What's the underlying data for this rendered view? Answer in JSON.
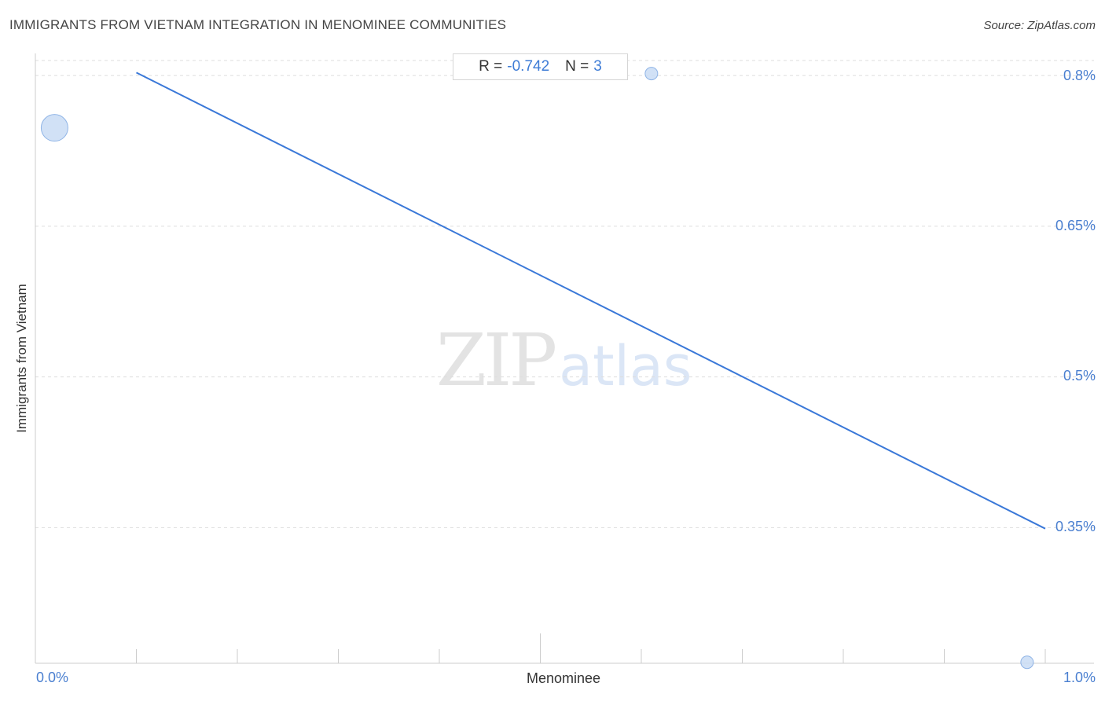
{
  "header": {
    "title": "IMMIGRANTS FROM VIETNAM INTEGRATION IN MENOMINEE COMMUNITIES",
    "source": "Source: ZipAtlas.com"
  },
  "watermark": {
    "zip": "ZIP",
    "atlas": "atlas"
  },
  "stats": {
    "r_label": "R =",
    "r_value": "-0.742",
    "n_label": "N =",
    "n_value": "3"
  },
  "chart_data": {
    "type": "scatter",
    "title": "IMMIGRANTS FROM VIETNAM INTEGRATION IN MENOMINEE COMMUNITIES",
    "xlabel": "Menominee",
    "ylabel": "Immigrants from Vietnam",
    "x_tick_labels": [
      "0.0%",
      "1.0%"
    ],
    "y_tick_labels": [
      "0.8%",
      "0.65%",
      "0.5%",
      "0.35%"
    ],
    "y_ticks": [
      0.8,
      0.65,
      0.5,
      0.35
    ],
    "xlim": [
      0.0,
      1.0
    ],
    "ylim": [
      0.215,
      0.815
    ],
    "grid": true,
    "points": [
      {
        "x": 0.019,
        "y": 0.748,
        "size": "large"
      },
      {
        "x": 0.61,
        "y": 0.802,
        "size": "small"
      },
      {
        "x": 0.982,
        "y": 0.216,
        "size": "small"
      }
    ],
    "trendline": {
      "x": [
        0.1,
        1.0
      ],
      "y": [
        0.803,
        0.349
      ]
    },
    "colors": {
      "point_fill": "#c9dcf5",
      "point_stroke": "#8fb4e6",
      "trendline": "#3a78d8",
      "grid": "#dddddd",
      "tick_text": "#4a7fd0"
    }
  }
}
